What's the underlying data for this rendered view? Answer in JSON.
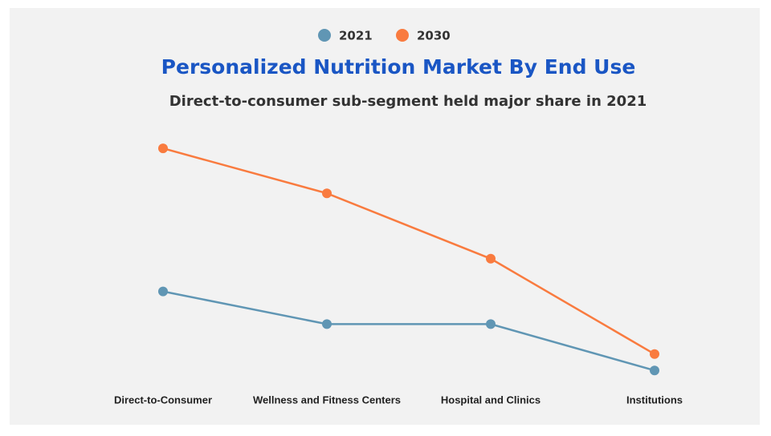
{
  "chart_data": {
    "type": "line",
    "title": "Personalized Nutrition Market By End Use",
    "subtitle": "Direct-to-consumer sub-segment held major share in 2021",
    "categories": [
      "Direct-to-Consumer",
      "Wellness and Fitness Centers",
      "Hospital and Clinics",
      "Institutions"
    ],
    "series": [
      {
        "name": "2021",
        "color": "#6096b4",
        "values": [
          41,
          29,
          29,
          12
        ]
      },
      {
        "name": "2030",
        "color": "#f97b3f",
        "values": [
          93.5,
          77,
          53,
          18
        ]
      }
    ],
    "ylim": [
      0,
      100
    ]
  }
}
